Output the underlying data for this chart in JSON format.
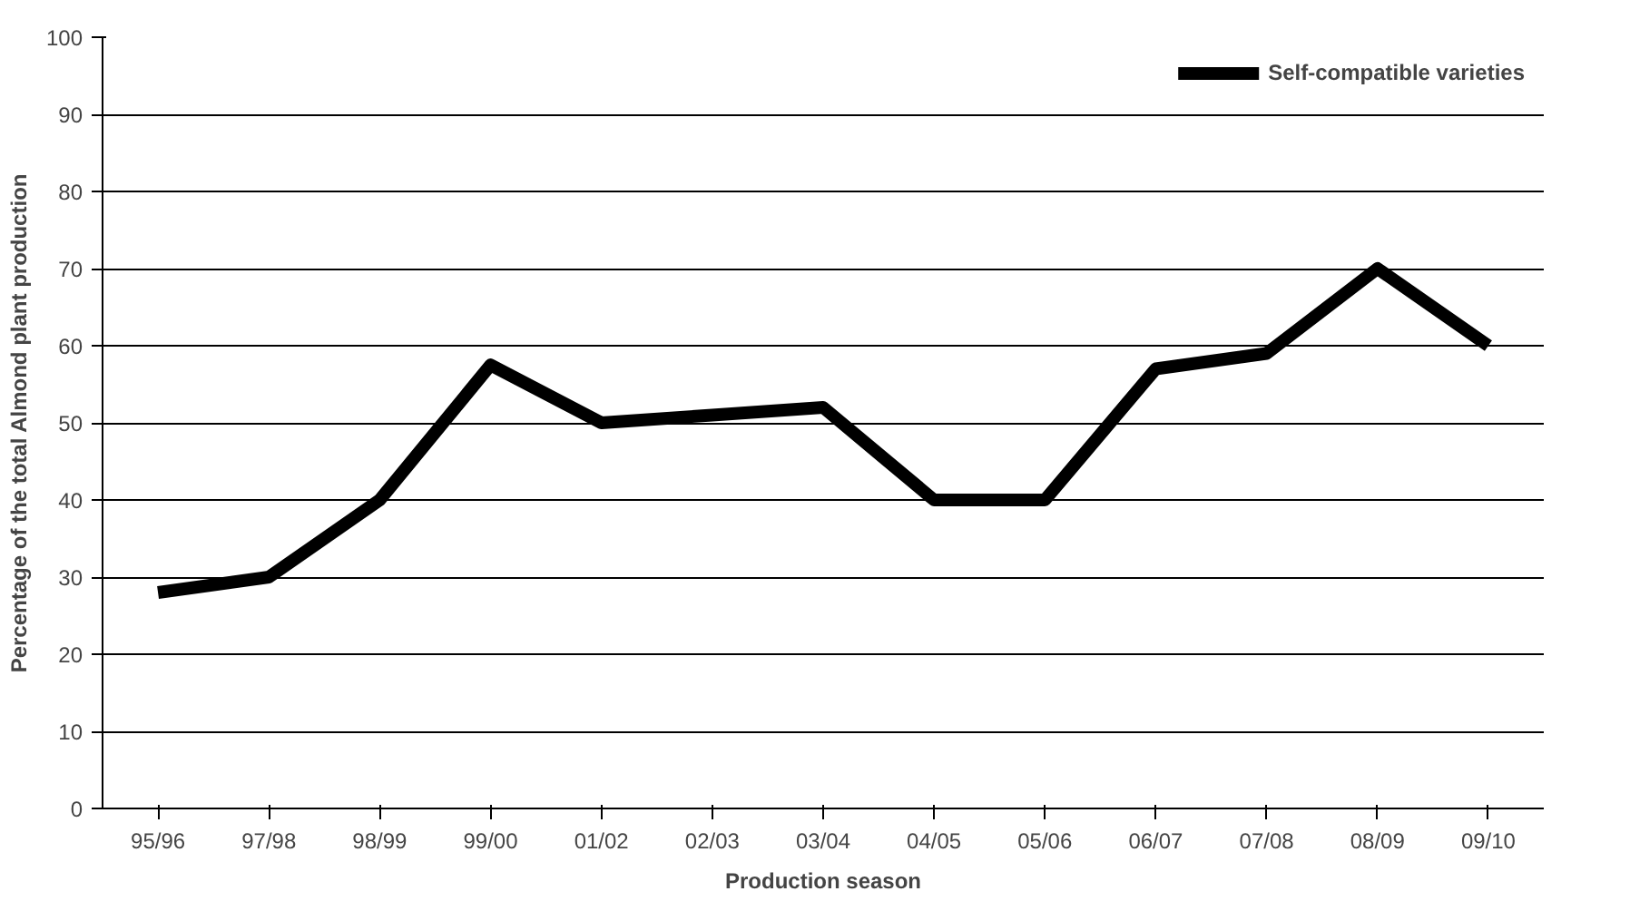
{
  "chart_data": {
    "type": "line",
    "xlabel": "Production season",
    "ylabel": "Percentage of the total Almond plant production",
    "categories": [
      "95/96",
      "97/98",
      "98/99",
      "99/00",
      "01/02",
      "02/03",
      "03/04",
      "04/05",
      "05/06",
      "06/07",
      "07/08",
      "08/09",
      "09/10"
    ],
    "series": [
      {
        "name": "Self-compatible varieties",
        "color": "#000000",
        "values": [
          28,
          30,
          40,
          57.5,
          50,
          51,
          52,
          40,
          40,
          57,
          59,
          70,
          60
        ]
      }
    ],
    "ylim": [
      0,
      100
    ],
    "yticks": [
      0,
      10,
      20,
      30,
      40,
      50,
      60,
      70,
      80,
      90,
      100
    ],
    "grid": "y",
    "legend": "top right",
    "marker": "none",
    "line_style": "solid"
  }
}
